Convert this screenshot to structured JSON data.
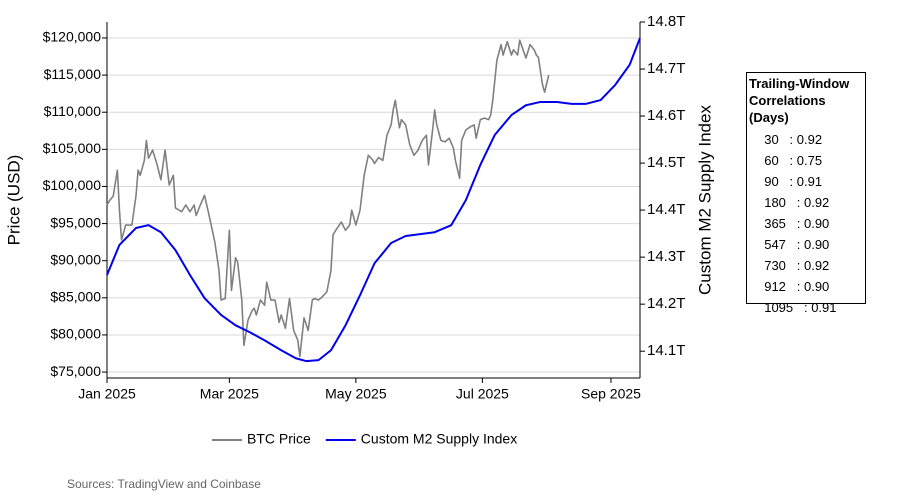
{
  "chart_data": {
    "type": "line",
    "ylabel": "Price (USD)",
    "y2label": "Custom M2 Supply Index",
    "grid": true,
    "legend": "bottom",
    "source": "Sources: TradingView and Coinbase",
    "xlim": [
      0,
      257
    ],
    "xticks": [
      {
        "value": 0,
        "label": "Jan 2025"
      },
      {
        "value": 59,
        "label": "Mar 2025"
      },
      {
        "value": 120,
        "label": "May 2025"
      },
      {
        "value": 181,
        "label": "Jul 2025"
      },
      {
        "value": 243,
        "label": "Sep 2025"
      }
    ],
    "ylim": [
      74200,
      122150
    ],
    "yticks": [
      {
        "value": 75000,
        "label": "$75,000"
      },
      {
        "value": 80000,
        "label": "$80,000"
      },
      {
        "value": 85000,
        "label": "$85,000"
      },
      {
        "value": 90000,
        "label": "$90,000"
      },
      {
        "value": 95000,
        "label": "$95,000"
      },
      {
        "value": 100000,
        "label": "$100,000"
      },
      {
        "value": 105000,
        "label": "$105,000"
      },
      {
        "value": 110000,
        "label": "$110,000"
      },
      {
        "value": 115000,
        "label": "$115,000"
      },
      {
        "value": 120000,
        "label": "$120,000"
      }
    ],
    "y2lim": [
      14.043,
      14.8
    ],
    "y2ticks": [
      {
        "value": 14.1,
        "label": "14.1T"
      },
      {
        "value": 14.2,
        "label": "14.2T"
      },
      {
        "value": 14.3,
        "label": "14.3T"
      },
      {
        "value": 14.4,
        "label": "14.4T"
      },
      {
        "value": 14.5,
        "label": "14.5T"
      },
      {
        "value": 14.6,
        "label": "14.6T"
      },
      {
        "value": 14.7,
        "label": "14.7T"
      },
      {
        "value": 14.8,
        "label": "14.8T"
      }
    ],
    "series": [
      {
        "name": "BTC Price",
        "color": "#808080",
        "axis": "y",
        "x": [
          0,
          1,
          3,
          5,
          6,
          7,
          9,
          12,
          14,
          15,
          16,
          18,
          19,
          20,
          22,
          24,
          26,
          28,
          30,
          32,
          33,
          36,
          38,
          40,
          42,
          43,
          45,
          47,
          49,
          52,
          54,
          55,
          57,
          59,
          60,
          62,
          63,
          65,
          66,
          68,
          70,
          71,
          72,
          74,
          76,
          77,
          79,
          81,
          83,
          84,
          86,
          88,
          90,
          92,
          93,
          95,
          97,
          99,
          100,
          102,
          104,
          106,
          108,
          109,
          111,
          113,
          115,
          117,
          118,
          120,
          122,
          124,
          126,
          128,
          129,
          131,
          133,
          135,
          137,
          138,
          139,
          141,
          142,
          144,
          146,
          148,
          150,
          152,
          154,
          155,
          157,
          158,
          159,
          161,
          163,
          165,
          167,
          168,
          170,
          171,
          173,
          175,
          177,
          178,
          180,
          182,
          184,
          185,
          186,
          188,
          190,
          191,
          193,
          195,
          196,
          198,
          199,
          201,
          202,
          204,
          206,
          207,
          208,
          210,
          211,
          213
        ],
        "values": [
          97500,
          98000,
          98700,
          102200,
          96800,
          92800,
          94800,
          94800,
          98800,
          102200,
          101500,
          103500,
          106200,
          103800,
          104900,
          103100,
          100900,
          104900,
          100200,
          101500,
          97100,
          96600,
          97500,
          96600,
          97500,
          96100,
          97500,
          98800,
          96400,
          92500,
          88700,
          84700,
          84900,
          94100,
          86000,
          90400,
          89800,
          84700,
          78600,
          82000,
          83300,
          83600,
          82700,
          84700,
          84000,
          87100,
          84700,
          84700,
          81700,
          82700,
          80900,
          84900,
          80600,
          79300,
          77100,
          82300,
          80600,
          84700,
          84900,
          84700,
          85200,
          85800,
          88700,
          93500,
          94400,
          95200,
          94100,
          94800,
          96800,
          94800,
          96800,
          101500,
          104200,
          103600,
          103100,
          103900,
          103500,
          106900,
          108300,
          110300,
          111600,
          107900,
          109000,
          108300,
          105600,
          104200,
          104900,
          106200,
          106900,
          102900,
          107600,
          110300,
          108300,
          106200,
          106000,
          106500,
          105200,
          103500,
          101100,
          106200,
          107600,
          108000,
          108300,
          106500,
          109000,
          109200,
          109000,
          109600,
          111600,
          117000,
          119100,
          117700,
          119500,
          117700,
          118400,
          117700,
          119700,
          118100,
          117300,
          119100,
          118400,
          117700,
          117400,
          113700,
          112700,
          115000
        ]
      },
      {
        "name": "Custom M2 Supply Index",
        "color": "#0000ee",
        "axis": "y2",
        "x": [
          0,
          6,
          14,
          20,
          26,
          33,
          40,
          47,
          55,
          62,
          69,
          76,
          84,
          91,
          96,
          102,
          108,
          115,
          122,
          129,
          137,
          144,
          151,
          158,
          166,
          173,
          180,
          187,
          195,
          202,
          209,
          217,
          224,
          231,
          238,
          245,
          252,
          257
        ],
        "values": [
          14.262,
          14.326,
          14.362,
          14.368,
          14.353,
          14.315,
          14.262,
          14.213,
          14.177,
          14.155,
          14.14,
          14.123,
          14.102,
          14.085,
          14.079,
          14.081,
          14.102,
          14.155,
          14.219,
          14.287,
          14.33,
          14.345,
          14.349,
          14.353,
          14.368,
          14.421,
          14.496,
          14.56,
          14.602,
          14.623,
          14.63,
          14.63,
          14.626,
          14.626,
          14.634,
          14.666,
          14.709,
          14.766
        ]
      }
    ]
  },
  "correlation_table": {
    "title": "Trailing-Window Correlations (Days)",
    "rows": [
      "  30   : 0.92",
      "  60   : 0.75",
      "  90   : 0.91",
      "  180   : 0.92",
      "  365   : 0.90",
      "  547   : 0.90",
      "  730   : 0.92",
      "  912   : 0.90",
      "  1095   : 0.91"
    ]
  }
}
